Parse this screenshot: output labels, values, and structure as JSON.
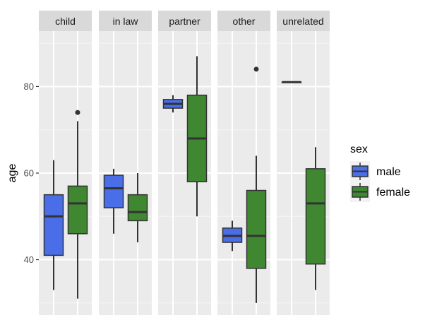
{
  "chart_data": {
    "type": "boxplot",
    "title": "",
    "xlabel": "",
    "ylabel": "age",
    "ylim": [
      27.2,
      92.8
    ],
    "yticks": [
      40,
      60,
      80
    ],
    "grid": true,
    "facets": [
      "child",
      "in law",
      "partner",
      "other",
      "unrelated"
    ],
    "legend": {
      "title": "sex",
      "position": "right",
      "entries": [
        {
          "name": "male",
          "color": "#4a6ee8"
        },
        {
          "name": "female",
          "color": "#3f8731"
        }
      ]
    },
    "series": [
      {
        "name": "male",
        "color": "#4a6ee8",
        "boxes": [
          {
            "facet": "child",
            "whisker_low": 33,
            "q1": 41,
            "median": 50,
            "q3": 55,
            "whisker_high": 63,
            "outliers": []
          },
          {
            "facet": "in law",
            "whisker_low": 46,
            "q1": 52,
            "median": 56.5,
            "q3": 59.5,
            "whisker_high": 61,
            "outliers": []
          },
          {
            "facet": "partner",
            "whisker_low": 74,
            "q1": 75,
            "median": 76,
            "q3": 77,
            "whisker_high": 78,
            "outliers": []
          },
          {
            "facet": "other",
            "whisker_low": 42,
            "q1": 44,
            "median": 45.5,
            "q3": 47.3,
            "whisker_high": 49,
            "outliers": []
          },
          {
            "facet": "unrelated",
            "whisker_low": 81,
            "q1": 81,
            "median": 81,
            "q3": 81,
            "whisker_high": 81,
            "outliers": []
          }
        ]
      },
      {
        "name": "female",
        "color": "#3f8731",
        "boxes": [
          {
            "facet": "child",
            "whisker_low": 31,
            "q1": 46,
            "median": 53,
            "q3": 57,
            "whisker_high": 72,
            "outliers": [
              74
            ]
          },
          {
            "facet": "in law",
            "whisker_low": 44,
            "q1": 49,
            "median": 51,
            "q3": 55,
            "whisker_high": 60,
            "outliers": []
          },
          {
            "facet": "partner",
            "whisker_low": 50,
            "q1": 58,
            "median": 68,
            "q3": 78,
            "whisker_high": 87,
            "outliers": []
          },
          {
            "facet": "other",
            "whisker_low": 30,
            "q1": 38,
            "median": 45.5,
            "q3": 56,
            "whisker_high": 64,
            "outliers": [
              84
            ]
          },
          {
            "facet": "unrelated",
            "whisker_low": 33,
            "q1": 39,
            "median": 53,
            "q3": 61,
            "whisker_high": 66,
            "outliers": []
          }
        ]
      }
    ]
  }
}
